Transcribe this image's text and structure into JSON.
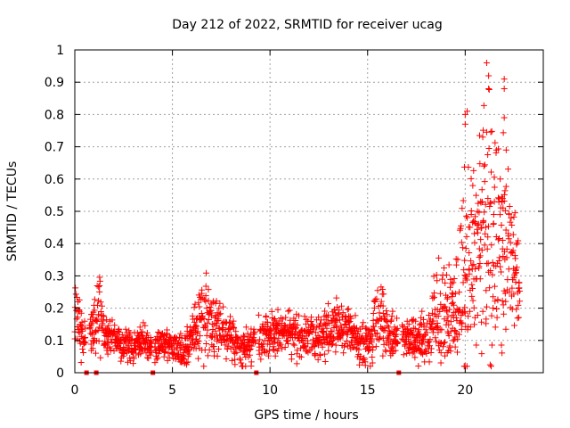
{
  "chart_data": {
    "type": "scatter",
    "title": "Day 212 of 2022, SRMTID for receiver ucag",
    "xlabel": "GPS time / hours",
    "ylabel": "SRMTID / TECUs",
    "xlim": [
      0,
      24
    ],
    "ylim": [
      0,
      1
    ],
    "xticks": [
      0,
      5,
      10,
      15,
      20
    ],
    "xtick_labels": [
      "0",
      "5",
      "10",
      "15",
      "20"
    ],
    "yticks": [
      0,
      0.1,
      0.2,
      0.3,
      0.4,
      0.5,
      0.6,
      0.7,
      0.8,
      0.9,
      1
    ],
    "ytick_labels": [
      "0",
      "0.1",
      "0.2",
      "0.3",
      "0.4",
      "0.5",
      "0.6",
      "0.7",
      "0.8",
      "0.9",
      "1"
    ],
    "grid": true,
    "marker": "+",
    "color": "#ff0000",
    "series": [
      {
        "name": "SRMTID",
        "profile_hours": [
          0,
          0.25,
          0.5,
          0.75,
          1.0,
          1.25,
          1.5,
          2,
          2.5,
          3,
          3.5,
          4,
          4.5,
          5,
          5.5,
          6,
          6.5,
          7,
          7.5,
          8,
          8.5,
          9,
          9.5,
          10,
          10.5,
          11,
          11.5,
          12,
          12.5,
          13,
          13.5,
          14,
          14.5,
          15,
          15.25,
          15.5,
          15.75,
          16,
          16.5,
          17,
          17.5,
          18,
          18.5,
          19,
          19.5,
          20,
          20.5,
          21,
          21.5,
          22,
          22.5,
          22.8
        ],
        "profile_median": [
          0.22,
          0.14,
          0.12,
          0.15,
          0.12,
          0.22,
          0.12,
          0.1,
          0.09,
          0.08,
          0.1,
          0.08,
          0.09,
          0.08,
          0.06,
          0.1,
          0.18,
          0.15,
          0.14,
          0.11,
          0.06,
          0.1,
          0.09,
          0.12,
          0.13,
          0.12,
          0.11,
          0.11,
          0.12,
          0.13,
          0.15,
          0.14,
          0.1,
          0.09,
          0.12,
          0.2,
          0.18,
          0.12,
          0.1,
          0.12,
          0.1,
          0.11,
          0.15,
          0.18,
          0.2,
          0.3,
          0.38,
          0.45,
          0.42,
          0.4,
          0.35,
          0.25
        ],
        "profile_spread": [
          0.08,
          0.05,
          0.04,
          0.04,
          0.04,
          0.08,
          0.04,
          0.03,
          0.03,
          0.03,
          0.03,
          0.03,
          0.03,
          0.03,
          0.03,
          0.05,
          0.08,
          0.06,
          0.05,
          0.04,
          0.03,
          0.04,
          0.04,
          0.04,
          0.04,
          0.04,
          0.04,
          0.04,
          0.05,
          0.05,
          0.05,
          0.05,
          0.04,
          0.04,
          0.05,
          0.08,
          0.07,
          0.04,
          0.04,
          0.04,
          0.04,
          0.05,
          0.1,
          0.08,
          0.08,
          0.2,
          0.2,
          0.2,
          0.25,
          0.2,
          0.15,
          0.05
        ],
        "peak_points": [
          [
            20.0,
            0.8
          ],
          [
            20.0,
            0.77
          ],
          [
            20.1,
            0.81
          ],
          [
            20.9,
            0.73
          ],
          [
            21.1,
            0.96
          ],
          [
            21.2,
            0.92
          ],
          [
            21.2,
            0.88
          ],
          [
            21.6,
            0.69
          ],
          [
            22.0,
            0.91
          ],
          [
            22.0,
            0.88
          ],
          [
            22.0,
            0.79
          ],
          [
            22.1,
            0.69
          ]
        ],
        "zero_points": [
          0.6,
          1.1,
          4.0,
          9.3,
          16.6
        ]
      }
    ]
  }
}
